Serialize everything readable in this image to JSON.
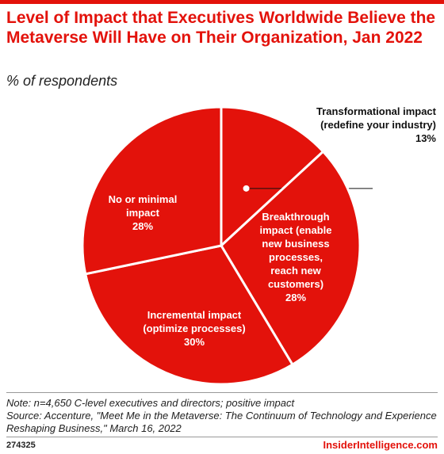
{
  "title": "Level of Impact that Executives Worldwide Believe the Metaverse Will Have on Their Organization, Jan 2022",
  "subtitle": "% of respondents",
  "chart_data": {
    "type": "pie",
    "title": "Level of Impact that Executives Worldwide Believe the Metaverse Will Have on Their Organization, Jan 2022",
    "subtitle": "% of respondents",
    "slices": [
      {
        "label": "Transformational impact (redefine your industry)",
        "lines": [
          "Transformational impact",
          "(redefine your industry)"
        ],
        "value": 13,
        "value_text": "13%"
      },
      {
        "label": "Breakthrough impact (enable new business processes, reach new customers)",
        "lines": [
          "Breakthrough",
          "impact (enable",
          "new business",
          "processes,",
          "reach new",
          "customers)"
        ],
        "value": 28,
        "value_text": "28%"
      },
      {
        "label": "Incremental impact (optimize processes)",
        "lines": [
          "Incremental impact",
          "(optimize processes)"
        ],
        "value": 30,
        "value_text": "30%"
      },
      {
        "label": "No or minimal impact",
        "lines": [
          "No or minimal",
          "impact"
        ],
        "value": 28,
        "value_text": "28%"
      }
    ],
    "colors": {
      "slice": "#e3120b",
      "border": "#ffffff",
      "label_text": "#ffffff",
      "callout_text": "#111111"
    }
  },
  "note": "Note: n=4,650 C-level executives and directors; positive impact",
  "source": "Source: Accenture, \"Meet Me in the Metaverse: The Continuum of Technology and Experience Reshaping Business,\" March 16, 2022",
  "footer": {
    "id": "274325",
    "brand": "InsiderIntelligence.com"
  }
}
